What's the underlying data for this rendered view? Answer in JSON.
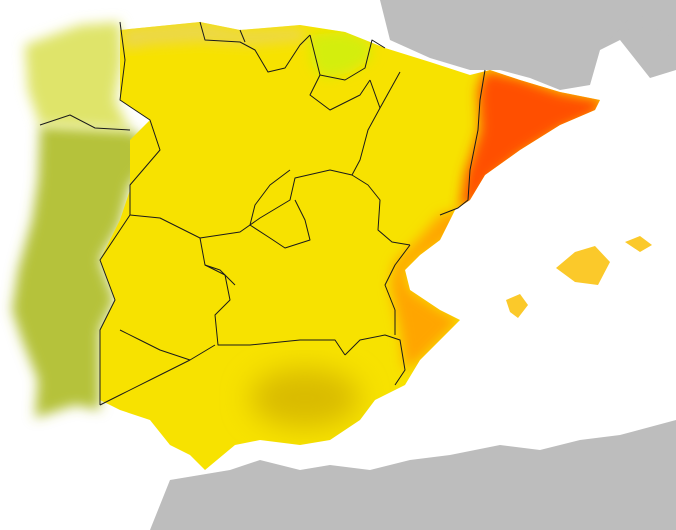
{
  "map": {
    "colors": {
      "sea": "#ffffff",
      "foreign_land": "#bdbdbd",
      "portugal_south": "#b5c23a",
      "portugal_north": "#dfe46a",
      "spain_base": "#f7e200",
      "andalusia_hotspot": "#d9bb00",
      "navarre": "#d4ee10",
      "basque_cantabria": "#ecd84a",
      "valencia": "#ffa500",
      "catalonia": "#ff5000",
      "balearic": "#fbc92a"
    }
  }
}
